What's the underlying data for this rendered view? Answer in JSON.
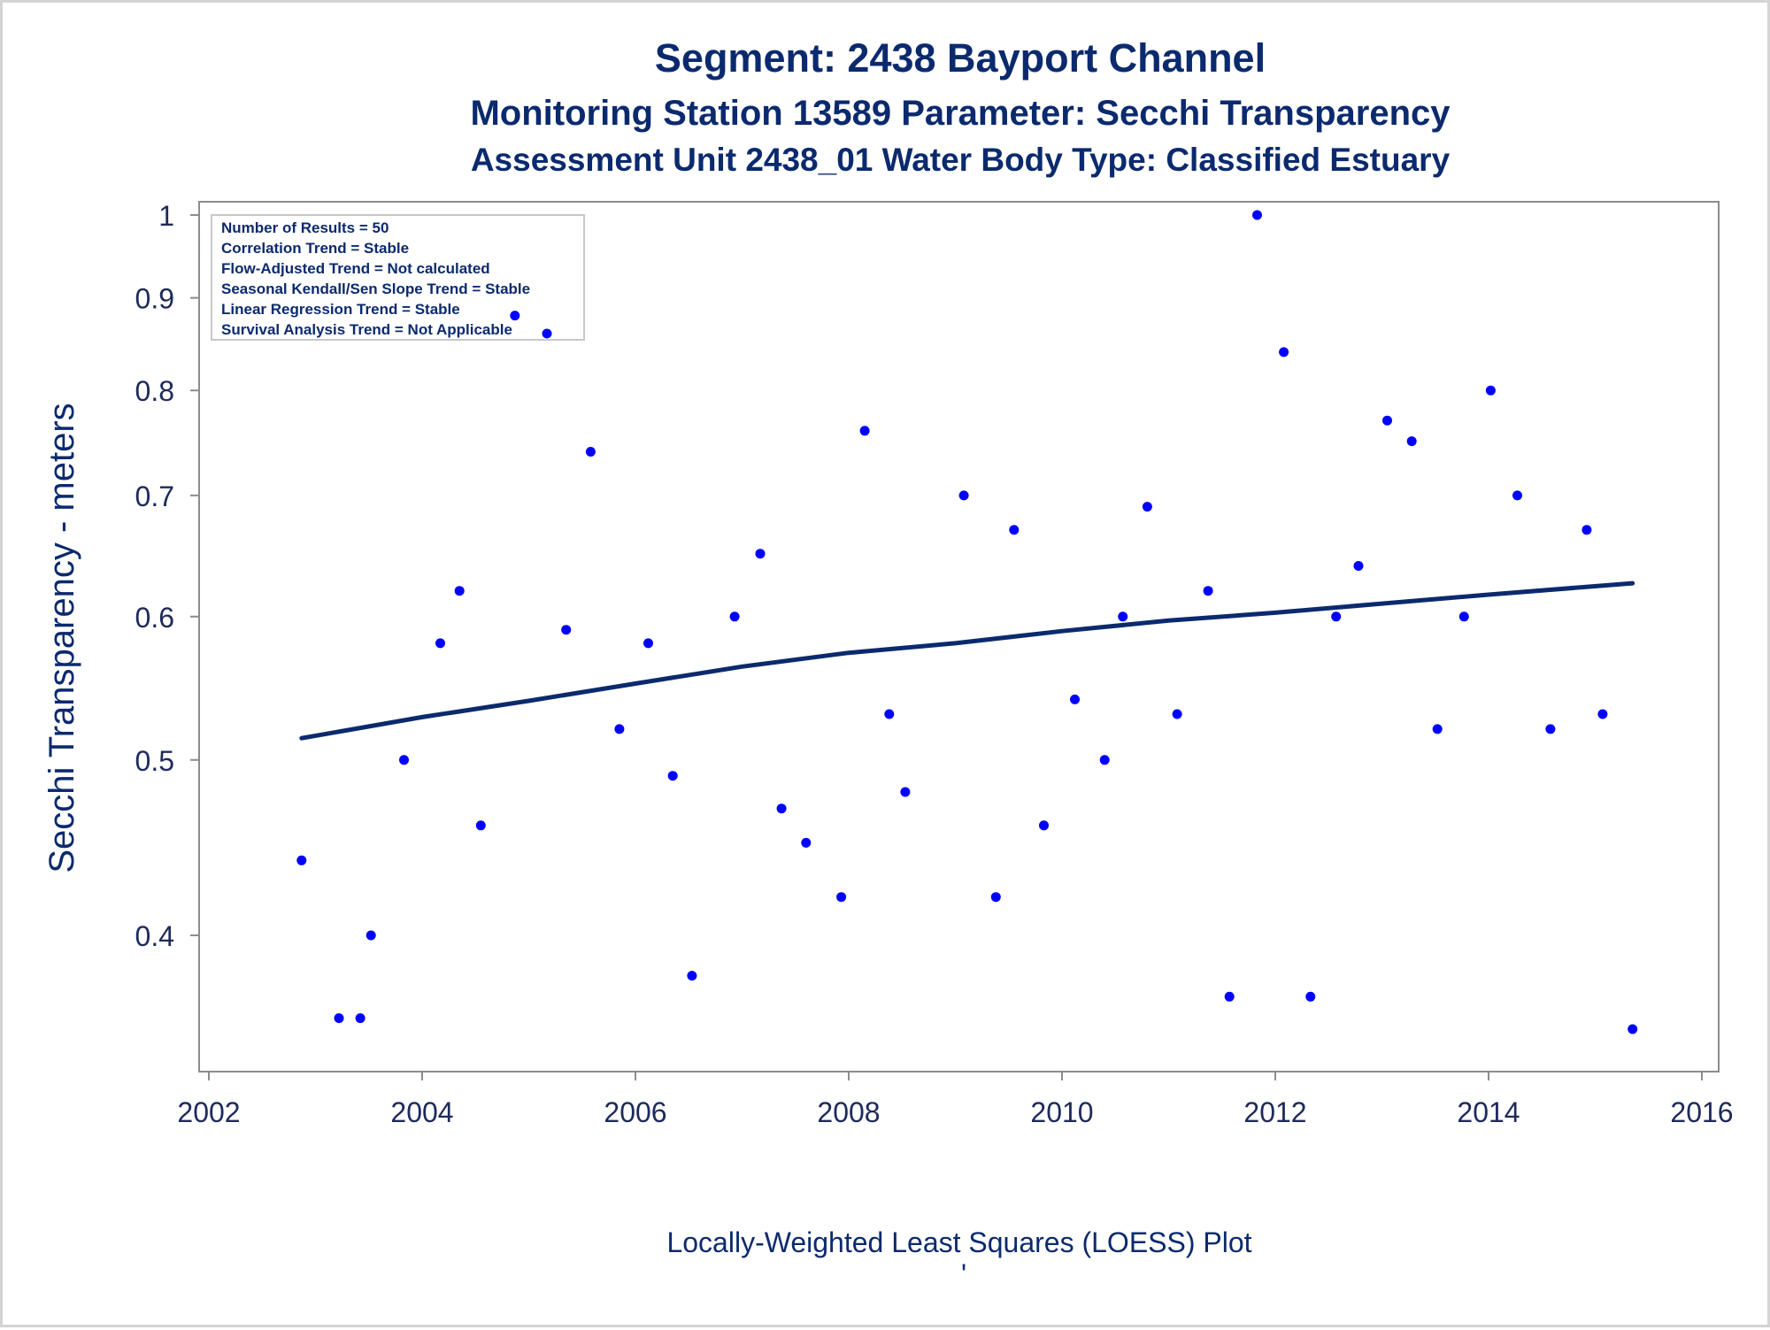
{
  "titles": {
    "line1": "Segment: 2438  Bayport Channel",
    "line2": "Monitoring Station 13589 Parameter: Secchi Transparency",
    "line3": "Assessment Unit 2438_01   Water Body Type: Classified Estuary"
  },
  "stats_box": [
    "Number of Results = 50",
    "Correlation Trend = Stable",
    "Flow-Adjusted Trend = Not calculated",
    "Seasonal Kendall/Sen Slope Trend = Stable",
    "Linear Regression Trend = Stable",
    "Survival Analysis Trend = Not Applicable"
  ],
  "footnote": "Locally-Weighted Least Squares (LOESS) Plot",
  "footnote_mark": "'",
  "colors": {
    "points": "#0000ff",
    "trend": "#0b2a6e",
    "text": "#0b2a6e",
    "axis": "#8c8c8c"
  },
  "chart_data": {
    "type": "scatter",
    "ylabel": "Secchi Transparency - meters",
    "xlabel": "",
    "y_scale": "log",
    "xlim": [
      2002,
      2016
    ],
    "ylim": [
      0.348,
      1.02
    ],
    "x_ticks": [
      2002,
      2004,
      2006,
      2008,
      2010,
      2012,
      2014,
      2016
    ],
    "y_ticks": [
      0.4,
      0.5,
      0.6,
      0.7,
      0.8,
      0.9,
      1
    ],
    "y_tick_labels": [
      "0.4",
      "0.5",
      "0.6",
      "0.7",
      "0.8",
      "0.9",
      "1"
    ],
    "series": [
      {
        "type": "scatter",
        "points": [
          [
            2002.87,
            0.44
          ],
          [
            2003.22,
            0.36
          ],
          [
            2003.42,
            0.36
          ],
          [
            2003.52,
            0.4
          ],
          [
            2003.83,
            0.5
          ],
          [
            2004.17,
            0.58
          ],
          [
            2004.35,
            0.62
          ],
          [
            2004.55,
            0.46
          ],
          [
            2004.87,
            0.88
          ],
          [
            2005.17,
            0.86
          ],
          [
            2005.35,
            0.59
          ],
          [
            2005.58,
            0.74
          ],
          [
            2005.85,
            0.52
          ],
          [
            2006.12,
            0.58
          ],
          [
            2006.35,
            0.49
          ],
          [
            2006.53,
            0.38
          ],
          [
            2006.93,
            0.6
          ],
          [
            2007.17,
            0.65
          ],
          [
            2007.37,
            0.47
          ],
          [
            2007.6,
            0.45
          ],
          [
            2007.93,
            0.42
          ],
          [
            2008.15,
            0.76
          ],
          [
            2008.38,
            0.53
          ],
          [
            2008.53,
            0.48
          ],
          [
            2009.08,
            0.7
          ],
          [
            2009.38,
            0.42
          ],
          [
            2009.55,
            0.67
          ],
          [
            2009.83,
            0.46
          ],
          [
            2010.12,
            0.54
          ],
          [
            2010.4,
            0.5
          ],
          [
            2010.57,
            0.6
          ],
          [
            2010.8,
            0.69
          ],
          [
            2011.08,
            0.53
          ],
          [
            2011.37,
            0.62
          ],
          [
            2011.57,
            0.37
          ],
          [
            2011.83,
            1.0
          ],
          [
            2012.08,
            0.84
          ],
          [
            2012.33,
            0.37
          ],
          [
            2012.57,
            0.6
          ],
          [
            2012.78,
            0.64
          ],
          [
            2013.05,
            0.77
          ],
          [
            2013.28,
            0.75
          ],
          [
            2013.52,
            0.52
          ],
          [
            2013.77,
            0.6
          ],
          [
            2014.02,
            0.8
          ],
          [
            2014.27,
            0.7
          ],
          [
            2014.58,
            0.52
          ],
          [
            2014.92,
            0.67
          ],
          [
            2015.07,
            0.53
          ],
          [
            2015.35,
            0.355
          ]
        ]
      },
      {
        "type": "line",
        "points": [
          [
            2002.87,
            0.514
          ],
          [
            2004.0,
            0.528
          ],
          [
            2005.0,
            0.539
          ],
          [
            2006.0,
            0.551
          ],
          [
            2007.0,
            0.563
          ],
          [
            2008.0,
            0.573
          ],
          [
            2009.0,
            0.58
          ],
          [
            2010.0,
            0.589
          ],
          [
            2011.0,
            0.597
          ],
          [
            2012.0,
            0.603
          ],
          [
            2013.0,
            0.61
          ],
          [
            2014.0,
            0.617
          ],
          [
            2015.35,
            0.626
          ]
        ]
      }
    ]
  }
}
